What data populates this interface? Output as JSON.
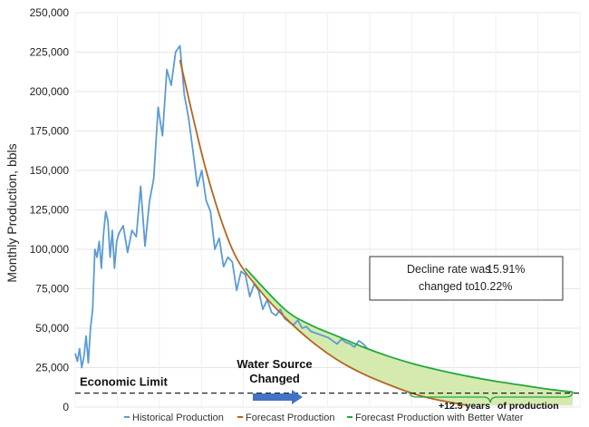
{
  "chart_data": {
    "type": "line",
    "title": "",
    "xlabel": "",
    "ylabel": "Monthly Production, bbls",
    "ylim": [
      0,
      250000
    ],
    "yticks": [
      "0",
      "25,000",
      "50,000",
      "75,000",
      "100,000",
      "125,000",
      "150,000",
      "175,000",
      "200,000",
      "225,000",
      "250,000"
    ],
    "ytick_values": [
      0,
      25000,
      50000,
      75000,
      100000,
      125000,
      150000,
      175000,
      200000,
      225000,
      250000
    ],
    "grid": true,
    "legend_position": "bottom",
    "x_unit_note_months": [
      0,
      170
    ],
    "series": [
      {
        "name": "Historical Production",
        "color": "#5b9bd5",
        "x": [
          0,
          1,
          2,
          3,
          4,
          5,
          6,
          7,
          8,
          9,
          10,
          11,
          12,
          13,
          14,
          15,
          16,
          17,
          18,
          19,
          20,
          22,
          24,
          26,
          28,
          30,
          32,
          34,
          36,
          38,
          40,
          42,
          44,
          46,
          48,
          50,
          52,
          54,
          56,
          58,
          60,
          62,
          64,
          66,
          68,
          70,
          72,
          74,
          76,
          78,
          80,
          82,
          84,
          86,
          88,
          90,
          92,
          94,
          96,
          98,
          100,
          102,
          104,
          106,
          108,
          110,
          112,
          114,
          116,
          118,
          120,
          122,
          124,
          126,
          128,
          130,
          132,
          134
        ],
        "values": [
          34000,
          29000,
          37000,
          25000,
          32000,
          45000,
          28000,
          50000,
          62000,
          100000,
          95000,
          105000,
          88000,
          110000,
          124000,
          118000,
          95000,
          112000,
          88000,
          105000,
          110000,
          115000,
          98000,
          112000,
          108000,
          140000,
          102000,
          130000,
          145000,
          190000,
          172000,
          214000,
          204000,
          225000,
          229000,
          198000,
          183000,
          162000,
          140000,
          150000,
          131000,
          124000,
          100000,
          107000,
          89000,
          95000,
          92000,
          74000,
          86000,
          84000,
          70000,
          78000,
          74000,
          62000,
          68000,
          60000,
          58000,
          62000,
          56000,
          54000,
          52000,
          55000,
          50000,
          51000,
          48000,
          47000,
          46000,
          45000,
          44000,
          42000,
          40000,
          43000,
          41000,
          40000,
          38000,
          42000,
          40000,
          37000
        ]
      },
      {
        "name": "Forecast Production",
        "color": "#b5651d",
        "decline_rate": "15.91%",
        "x": [
          48,
          60,
          72,
          84,
          96,
          108,
          120,
          132,
          144,
          156,
          168,
          180
        ],
        "values": [
          220000,
          150000,
          100000,
          75000,
          57000,
          42000,
          30000,
          21000,
          14000,
          8000,
          4000,
          1000
        ]
      },
      {
        "name": "Forecast Production with Better Water",
        "color": "#22a83e",
        "decline_rate": "10.22%",
        "x": [
          78,
          96,
          108,
          120,
          132,
          144,
          156,
          168,
          180,
          192,
          204,
          216,
          228
        ],
        "values": [
          88000,
          62000,
          52000,
          45000,
          38000,
          32000,
          27000,
          23000,
          19500,
          16500,
          14000,
          11500,
          9500
        ]
      }
    ],
    "economic_limit": 10000,
    "annotations": {
      "economic_limit_label": "Economic Limit",
      "water_source_label": "Water Source Changed",
      "extra_years_value": "+12.5 years",
      "extra_years_suffix": "of production",
      "decline_prefix": "Decline rate was",
      "decline_old": "15.91%",
      "decline_changed": "changed to",
      "decline_new": "10.22%"
    }
  }
}
